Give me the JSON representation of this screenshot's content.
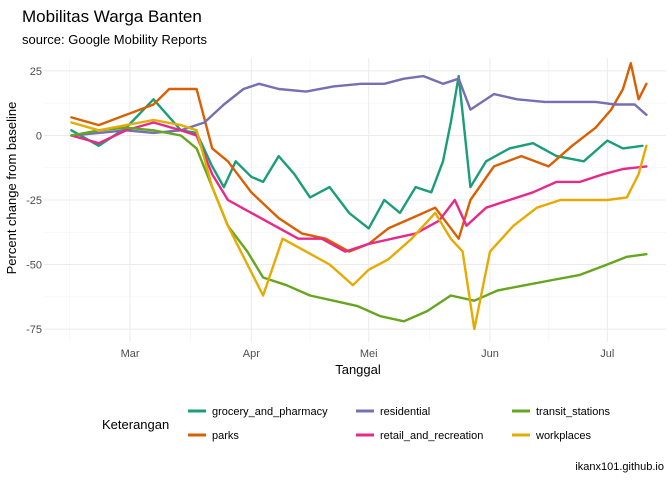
{
  "chart_data": {
    "type": "line",
    "title": "Mobilitas Warga Banten",
    "subtitle": "source: Google Mobility Reports",
    "caption": "ikanx101.github.io",
    "xlabel": "Tanggal",
    "ylabel": "Percent change from baseline",
    "x_ticks": [
      {
        "date": "2020-03-01",
        "label": "Mar"
      },
      {
        "date": "2020-04-01",
        "label": "Apr"
      },
      {
        "date": "2020-05-01",
        "label": "Mei"
      },
      {
        "date": "2020-06-01",
        "label": "Jun"
      },
      {
        "date": "2020-07-01",
        "label": "Jul"
      }
    ],
    "y_ticks": [
      25,
      0,
      -25,
      -50,
      -75
    ],
    "xlim": [
      "2020-02-08",
      "2020-07-16"
    ],
    "ylim": [
      -80,
      30
    ],
    "grid": true,
    "legend": {
      "title": "Keterangan",
      "position": "bottom"
    },
    "series": [
      {
        "name": "grocery_and_pharmacy",
        "color": "#1b9e77",
        "points": [
          [
            "2020-02-15",
            2
          ],
          [
            "2020-02-22",
            -4
          ],
          [
            "2020-02-29",
            3
          ],
          [
            "2020-03-07",
            14
          ],
          [
            "2020-03-14",
            2
          ],
          [
            "2020-03-18",
            1
          ],
          [
            "2020-03-22",
            -12
          ],
          [
            "2020-03-25",
            -20
          ],
          [
            "2020-03-28",
            -10
          ],
          [
            "2020-04-01",
            -16
          ],
          [
            "2020-04-04",
            -18
          ],
          [
            "2020-04-08",
            -8
          ],
          [
            "2020-04-12",
            -15
          ],
          [
            "2020-04-16",
            -24
          ],
          [
            "2020-04-21",
            -20
          ],
          [
            "2020-04-26",
            -30
          ],
          [
            "2020-05-01",
            -36
          ],
          [
            "2020-05-05",
            -25
          ],
          [
            "2020-05-09",
            -30
          ],
          [
            "2020-05-13",
            -20
          ],
          [
            "2020-05-17",
            -22
          ],
          [
            "2020-05-20",
            -10
          ],
          [
            "2020-05-22",
            5
          ],
          [
            "2020-05-24",
            23
          ],
          [
            "2020-05-27",
            -20
          ],
          [
            "2020-05-31",
            -10
          ],
          [
            "2020-06-06",
            -5
          ],
          [
            "2020-06-12",
            -3
          ],
          [
            "2020-06-18",
            -8
          ],
          [
            "2020-06-25",
            -10
          ],
          [
            "2020-07-01",
            -2
          ],
          [
            "2020-07-05",
            -5
          ],
          [
            "2020-07-10",
            -4
          ]
        ]
      },
      {
        "name": "parks",
        "color": "#d95f02",
        "points": [
          [
            "2020-02-15",
            7
          ],
          [
            "2020-02-22",
            4
          ],
          [
            "2020-02-29",
            8
          ],
          [
            "2020-03-07",
            12
          ],
          [
            "2020-03-11",
            18
          ],
          [
            "2020-03-18",
            18
          ],
          [
            "2020-03-22",
            -5
          ],
          [
            "2020-03-26",
            -10
          ],
          [
            "2020-04-01",
            -22
          ],
          [
            "2020-04-08",
            -32
          ],
          [
            "2020-04-14",
            -38
          ],
          [
            "2020-04-20",
            -40
          ],
          [
            "2020-04-26",
            -45
          ],
          [
            "2020-05-01",
            -42
          ],
          [
            "2020-05-06",
            -36
          ],
          [
            "2020-05-12",
            -32
          ],
          [
            "2020-05-18",
            -28
          ],
          [
            "2020-05-24",
            -40
          ],
          [
            "2020-05-27",
            -25
          ],
          [
            "2020-06-02",
            -12
          ],
          [
            "2020-06-09",
            -8
          ],
          [
            "2020-06-16",
            -12
          ],
          [
            "2020-06-22",
            -4
          ],
          [
            "2020-06-28",
            3
          ],
          [
            "2020-07-02",
            10
          ],
          [
            "2020-07-05",
            18
          ],
          [
            "2020-07-07",
            28
          ],
          [
            "2020-07-09",
            14
          ],
          [
            "2020-07-11",
            20
          ]
        ]
      },
      {
        "name": "residential",
        "color": "#7570b3",
        "points": [
          [
            "2020-02-15",
            0
          ],
          [
            "2020-02-22",
            1
          ],
          [
            "2020-02-29",
            2
          ],
          [
            "2020-03-07",
            1
          ],
          [
            "2020-03-14",
            2
          ],
          [
            "2020-03-20",
            5
          ],
          [
            "2020-03-25",
            12
          ],
          [
            "2020-03-30",
            18
          ],
          [
            "2020-04-03",
            20
          ],
          [
            "2020-04-08",
            18
          ],
          [
            "2020-04-15",
            17
          ],
          [
            "2020-04-22",
            19
          ],
          [
            "2020-04-29",
            20
          ],
          [
            "2020-05-05",
            20
          ],
          [
            "2020-05-10",
            22
          ],
          [
            "2020-05-15",
            23
          ],
          [
            "2020-05-20",
            20
          ],
          [
            "2020-05-24",
            22
          ],
          [
            "2020-05-27",
            10
          ],
          [
            "2020-06-02",
            16
          ],
          [
            "2020-06-08",
            14
          ],
          [
            "2020-06-15",
            13
          ],
          [
            "2020-06-22",
            13
          ],
          [
            "2020-06-28",
            13
          ],
          [
            "2020-07-03",
            12
          ],
          [
            "2020-07-08",
            12
          ],
          [
            "2020-07-11",
            8
          ]
        ]
      },
      {
        "name": "retail_and_recreation",
        "color": "#e7298a",
        "points": [
          [
            "2020-02-15",
            0
          ],
          [
            "2020-02-22",
            -3
          ],
          [
            "2020-02-29",
            2
          ],
          [
            "2020-03-07",
            5
          ],
          [
            "2020-03-14",
            2
          ],
          [
            "2020-03-18",
            0
          ],
          [
            "2020-03-22",
            -15
          ],
          [
            "2020-03-26",
            -25
          ],
          [
            "2020-04-01",
            -30
          ],
          [
            "2020-04-07",
            -35
          ],
          [
            "2020-04-13",
            -40
          ],
          [
            "2020-04-19",
            -40
          ],
          [
            "2020-04-25",
            -45
          ],
          [
            "2020-05-01",
            -42
          ],
          [
            "2020-05-07",
            -40
          ],
          [
            "2020-05-13",
            -38
          ],
          [
            "2020-05-19",
            -33
          ],
          [
            "2020-05-23",
            -25
          ],
          [
            "2020-05-26",
            -35
          ],
          [
            "2020-05-31",
            -28
          ],
          [
            "2020-06-06",
            -25
          ],
          [
            "2020-06-12",
            -22
          ],
          [
            "2020-06-18",
            -18
          ],
          [
            "2020-06-24",
            -18
          ],
          [
            "2020-06-30",
            -15
          ],
          [
            "2020-07-05",
            -13
          ],
          [
            "2020-07-11",
            -12
          ]
        ]
      },
      {
        "name": "transit_stations",
        "color": "#66a61e",
        "points": [
          [
            "2020-02-15",
            0
          ],
          [
            "2020-02-22",
            2
          ],
          [
            "2020-02-29",
            3
          ],
          [
            "2020-03-07",
            2
          ],
          [
            "2020-03-14",
            0
          ],
          [
            "2020-03-18",
            -5
          ],
          [
            "2020-03-22",
            -20
          ],
          [
            "2020-03-26",
            -35
          ],
          [
            "2020-03-31",
            -45
          ],
          [
            "2020-04-04",
            -55
          ],
          [
            "2020-04-10",
            -58
          ],
          [
            "2020-04-16",
            -62
          ],
          [
            "2020-04-22",
            -64
          ],
          [
            "2020-04-28",
            -66
          ],
          [
            "2020-05-04",
            -70
          ],
          [
            "2020-05-10",
            -72
          ],
          [
            "2020-05-16",
            -68
          ],
          [
            "2020-05-22",
            -62
          ],
          [
            "2020-05-28",
            -64
          ],
          [
            "2020-06-03",
            -60
          ],
          [
            "2020-06-10",
            -58
          ],
          [
            "2020-06-17",
            -56
          ],
          [
            "2020-06-24",
            -54
          ],
          [
            "2020-07-01",
            -50
          ],
          [
            "2020-07-06",
            -47
          ],
          [
            "2020-07-11",
            -46
          ]
        ]
      },
      {
        "name": "workplaces",
        "color": "#e6ab02",
        "points": [
          [
            "2020-02-15",
            5
          ],
          [
            "2020-02-22",
            2
          ],
          [
            "2020-02-29",
            4
          ],
          [
            "2020-03-07",
            6
          ],
          [
            "2020-03-14",
            4
          ],
          [
            "2020-03-18",
            2
          ],
          [
            "2020-03-22",
            -20
          ],
          [
            "2020-03-26",
            -35
          ],
          [
            "2020-03-31",
            -50
          ],
          [
            "2020-04-04",
            -62
          ],
          [
            "2020-04-09",
            -40
          ],
          [
            "2020-04-15",
            -45
          ],
          [
            "2020-04-21",
            -50
          ],
          [
            "2020-04-27",
            -58
          ],
          [
            "2020-05-01",
            -52
          ],
          [
            "2020-05-06",
            -48
          ],
          [
            "2020-05-12",
            -40
          ],
          [
            "2020-05-18",
            -30
          ],
          [
            "2020-05-22",
            -40
          ],
          [
            "2020-05-25",
            -45
          ],
          [
            "2020-05-28",
            -75
          ],
          [
            "2020-06-01",
            -45
          ],
          [
            "2020-06-07",
            -35
          ],
          [
            "2020-06-13",
            -28
          ],
          [
            "2020-06-19",
            -25
          ],
          [
            "2020-06-25",
            -25
          ],
          [
            "2020-07-01",
            -25
          ],
          [
            "2020-07-06",
            -24
          ],
          [
            "2020-07-09",
            -15
          ],
          [
            "2020-07-11",
            -4
          ]
        ]
      }
    ]
  }
}
